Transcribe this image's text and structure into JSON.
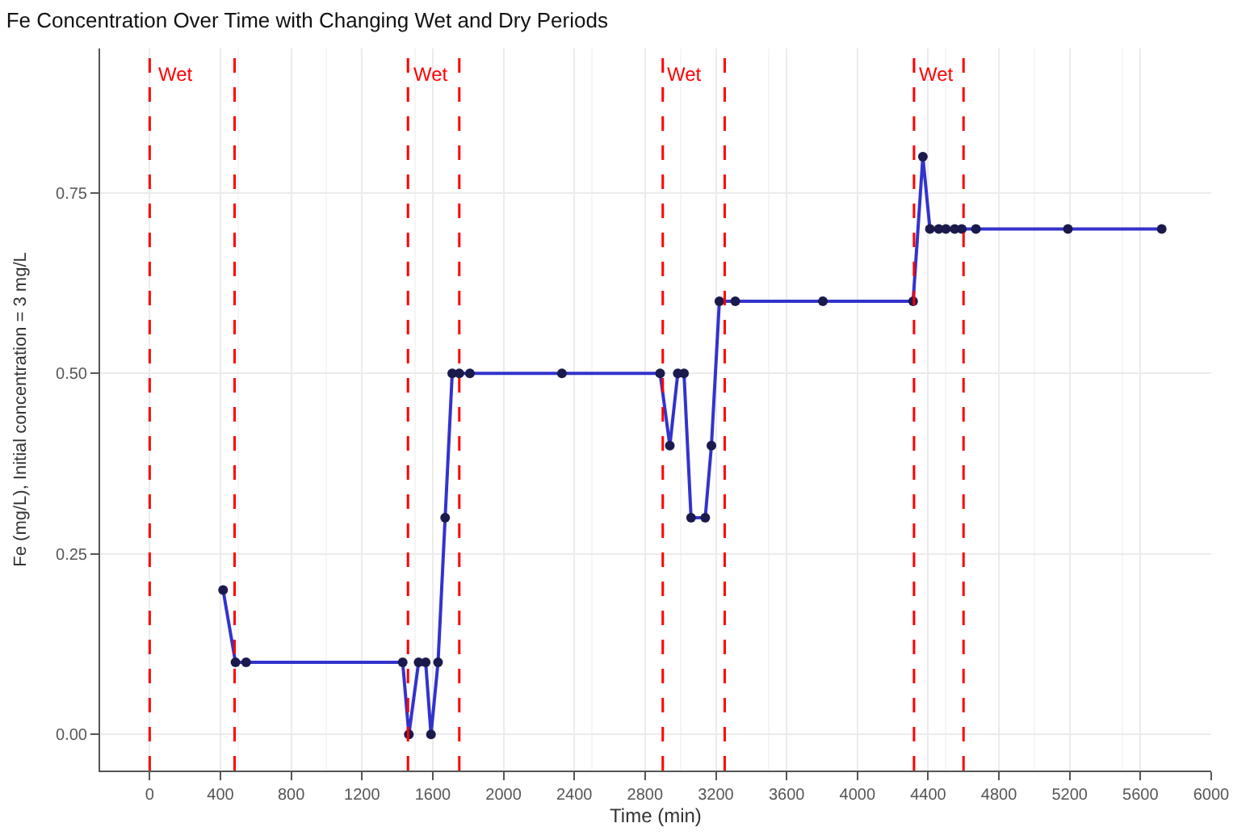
{
  "chart_data": {
    "type": "line",
    "title": "Fe Concentration Over Time with Changing Wet and Dry Periods",
    "xlabel": "Time (min)",
    "ylabel": "Fe (mg/L), Initial concentration = 3 mg/L",
    "x": [
      415,
      485,
      545,
      1430,
      1465,
      1520,
      1560,
      1590,
      1630,
      1670,
      1710,
      1750,
      1810,
      2330,
      2885,
      2940,
      2985,
      3020,
      3060,
      3140,
      3175,
      3220,
      3310,
      3805,
      4315,
      4370,
      4410,
      4460,
      4500,
      4550,
      4590,
      4670,
      5190,
      5720
    ],
    "series": [
      {
        "color": "#3333cc",
        "values": [
          0.2,
          0.1,
          0.1,
          0.1,
          0.0,
          0.1,
          0.1,
          0.0,
          0.1,
          0.3,
          0.5,
          0.5,
          0.5,
          0.5,
          0.5,
          0.4,
          0.5,
          0.5,
          0.3,
          0.3,
          0.4,
          0.6,
          0.6,
          0.6,
          0.6,
          0.8,
          0.7,
          0.7,
          0.7,
          0.7,
          0.7,
          0.7,
          0.7,
          0.7
        ]
      }
    ],
    "marker": "circle",
    "line_style": "solid",
    "grid": true,
    "xlim": [
      -280,
      6000
    ],
    "xticks": [
      0,
      400,
      800,
      1200,
      1600,
      2000,
      2400,
      2800,
      3200,
      3600,
      4000,
      4400,
      4800,
      5200,
      5600,
      6000
    ],
    "ylim": [
      -0.05,
      0.95
    ],
    "yticks": [
      {
        "value": 0,
        "label": "0.00"
      },
      {
        "value": 0.25,
        "label": "0.25"
      },
      {
        "value": 0.5,
        "label": "0.50"
      },
      {
        "value": 0.75,
        "label": "0.75"
      }
    ],
    "ref_lines": [
      {
        "axis": "x",
        "value": 0,
        "label": "Wet",
        "color": "#ff0000",
        "line_style": "dashed"
      },
      {
        "axis": "x",
        "value": 480,
        "color": "#ff0000",
        "line_style": "dashed"
      },
      {
        "axis": "x",
        "value": 1460,
        "label": "Wet",
        "color": "#ff0000",
        "line_style": "dashed"
      },
      {
        "axis": "x",
        "value": 1750,
        "color": "#ff0000",
        "line_style": "dashed"
      },
      {
        "axis": "x",
        "value": 2900,
        "label": "Wet",
        "color": "#ff0000",
        "line_style": "dashed"
      },
      {
        "axis": "x",
        "value": 3250,
        "color": "#ff0000",
        "line_style": "dashed"
      },
      {
        "axis": "x",
        "value": 4320,
        "label": "Wet",
        "color": "#ff0000",
        "line_style": "dashed"
      },
      {
        "axis": "x",
        "value": 4600,
        "color": "#ff0000",
        "line_style": "dashed"
      }
    ]
  }
}
